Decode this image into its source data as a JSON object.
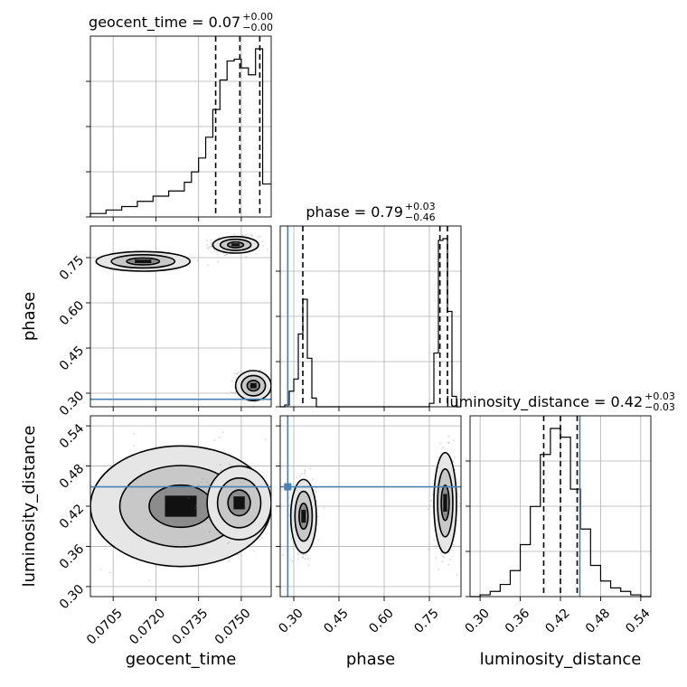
{
  "chart_data": {
    "type": "corner",
    "parameters": [
      {
        "key": "geocent_time",
        "label": "geocent_time",
        "title": {
          "name": "geocent_time",
          "value": "0.07",
          "plus": "+0.00",
          "minus": "−0.00"
        },
        "range": [
          0.0697,
          0.07605
        ],
        "ticks": [
          "0.0705",
          "0.0720",
          "0.0735",
          "0.0750"
        ],
        "tick_values": [
          0.0705,
          0.072,
          0.0735,
          0.075
        ],
        "quantiles": [
          0.0741,
          0.07495,
          0.07565
        ],
        "truth": null,
        "histogram": {
          "edges": [
            0.0697,
            0.07025,
            0.0708,
            0.07135,
            0.0719,
            0.07245,
            0.073,
            0.07325,
            0.0735,
            0.07375,
            0.074,
            0.07425,
            0.0745,
            0.07475,
            0.075,
            0.07525,
            0.0755,
            0.07575,
            0.07605
          ],
          "counts": [
            0.02,
            0.04,
            0.06,
            0.09,
            0.12,
            0.15,
            0.2,
            0.26,
            0.34,
            0.46,
            0.62,
            0.79,
            0.9,
            0.91,
            0.86,
            0.82,
            0.97,
            0.19
          ]
        }
      },
      {
        "key": "phase",
        "label": "phase",
        "title": {
          "name": "phase",
          "value": "0.79",
          "plus": "+0.03",
          "minus": "−0.46"
        },
        "range": [
          0.255,
          0.855
        ],
        "ticks": [
          "0.30",
          "0.45",
          "0.60",
          "0.75"
        ],
        "tick_values": [
          0.3,
          0.45,
          0.6,
          0.75
        ],
        "quantiles": [
          0.33,
          0.785,
          0.81
        ],
        "truth": 0.28,
        "histogram": {
          "edges": [
            0.255,
            0.27,
            0.285,
            0.3,
            0.315,
            0.33,
            0.345,
            0.36,
            0.375,
            0.735,
            0.75,
            0.765,
            0.78,
            0.795,
            0.81,
            0.825,
            0.84,
            0.855
          ],
          "counts": [
            0.0,
            0.01,
            0.09,
            0.16,
            0.42,
            0.62,
            0.28,
            0.05,
            0.0,
            0.0,
            0.02,
            0.31,
            0.96,
            0.97,
            0.55,
            0.06,
            0.0
          ]
        }
      },
      {
        "key": "luminosity_distance",
        "label": "luminosity_distance",
        "title": {
          "name": "luminosity_distance",
          "value": "0.42",
          "plus": "+0.03",
          "minus": "−0.03"
        },
        "range": [
          0.285,
          0.555
        ],
        "ticks": [
          "0.30",
          "0.36",
          "0.42",
          "0.48",
          "0.54"
        ],
        "tick_values": [
          0.3,
          0.36,
          0.42,
          0.48,
          0.54
        ],
        "quantiles": [
          0.395,
          0.42,
          0.445
        ],
        "truth": 0.449,
        "histogram": {
          "edges": [
            0.285,
            0.3,
            0.315,
            0.33,
            0.345,
            0.36,
            0.375,
            0.39,
            0.405,
            0.42,
            0.435,
            0.45,
            0.465,
            0.48,
            0.495,
            0.51,
            0.525,
            0.54,
            0.555
          ],
          "counts": [
            0.0,
            0.01,
            0.03,
            0.07,
            0.15,
            0.3,
            0.52,
            0.82,
            0.97,
            0.92,
            0.62,
            0.39,
            0.18,
            0.09,
            0.05,
            0.03,
            0.01,
            0.0
          ]
        }
      }
    ],
    "panels_2d": [
      {
        "x": "geocent_time",
        "y": "phase",
        "density": [
          {
            "x": [
              0.0699,
              0.0732
            ],
            "y": [
              0.705,
              0.77
            ],
            "weight": 0.05
          },
          {
            "x": [
              0.074,
              0.0756
            ],
            "y": [
              0.765,
              0.82
            ],
            "weight": 1.0
          },
          {
            "x": [
              0.0748,
              0.07605
            ],
            "y": [
              0.275,
              0.375
            ],
            "weight": 0.55
          }
        ],
        "contour_levels": 3
      },
      {
        "x": "geocent_time",
        "y": "luminosity_distance",
        "density": [
          {
            "x": [
              0.0697,
              0.07605
            ],
            "y": [
              0.33,
              0.51
            ],
            "weight": 0.1
          },
          {
            "x": [
              0.0738,
              0.07605
            ],
            "y": [
              0.37,
              0.48
            ],
            "weight": 1.0
          }
        ],
        "contour_levels": 3
      },
      {
        "x": "phase",
        "y": "luminosity_distance",
        "density": [
          {
            "x": [
              0.29,
              0.375
            ],
            "y": [
              0.35,
              0.46
            ],
            "weight": 0.6
          },
          {
            "x": [
              0.765,
              0.84
            ],
            "y": [
              0.35,
              0.5
            ],
            "weight": 1.0
          }
        ],
        "contour_levels": 3
      }
    ]
  }
}
